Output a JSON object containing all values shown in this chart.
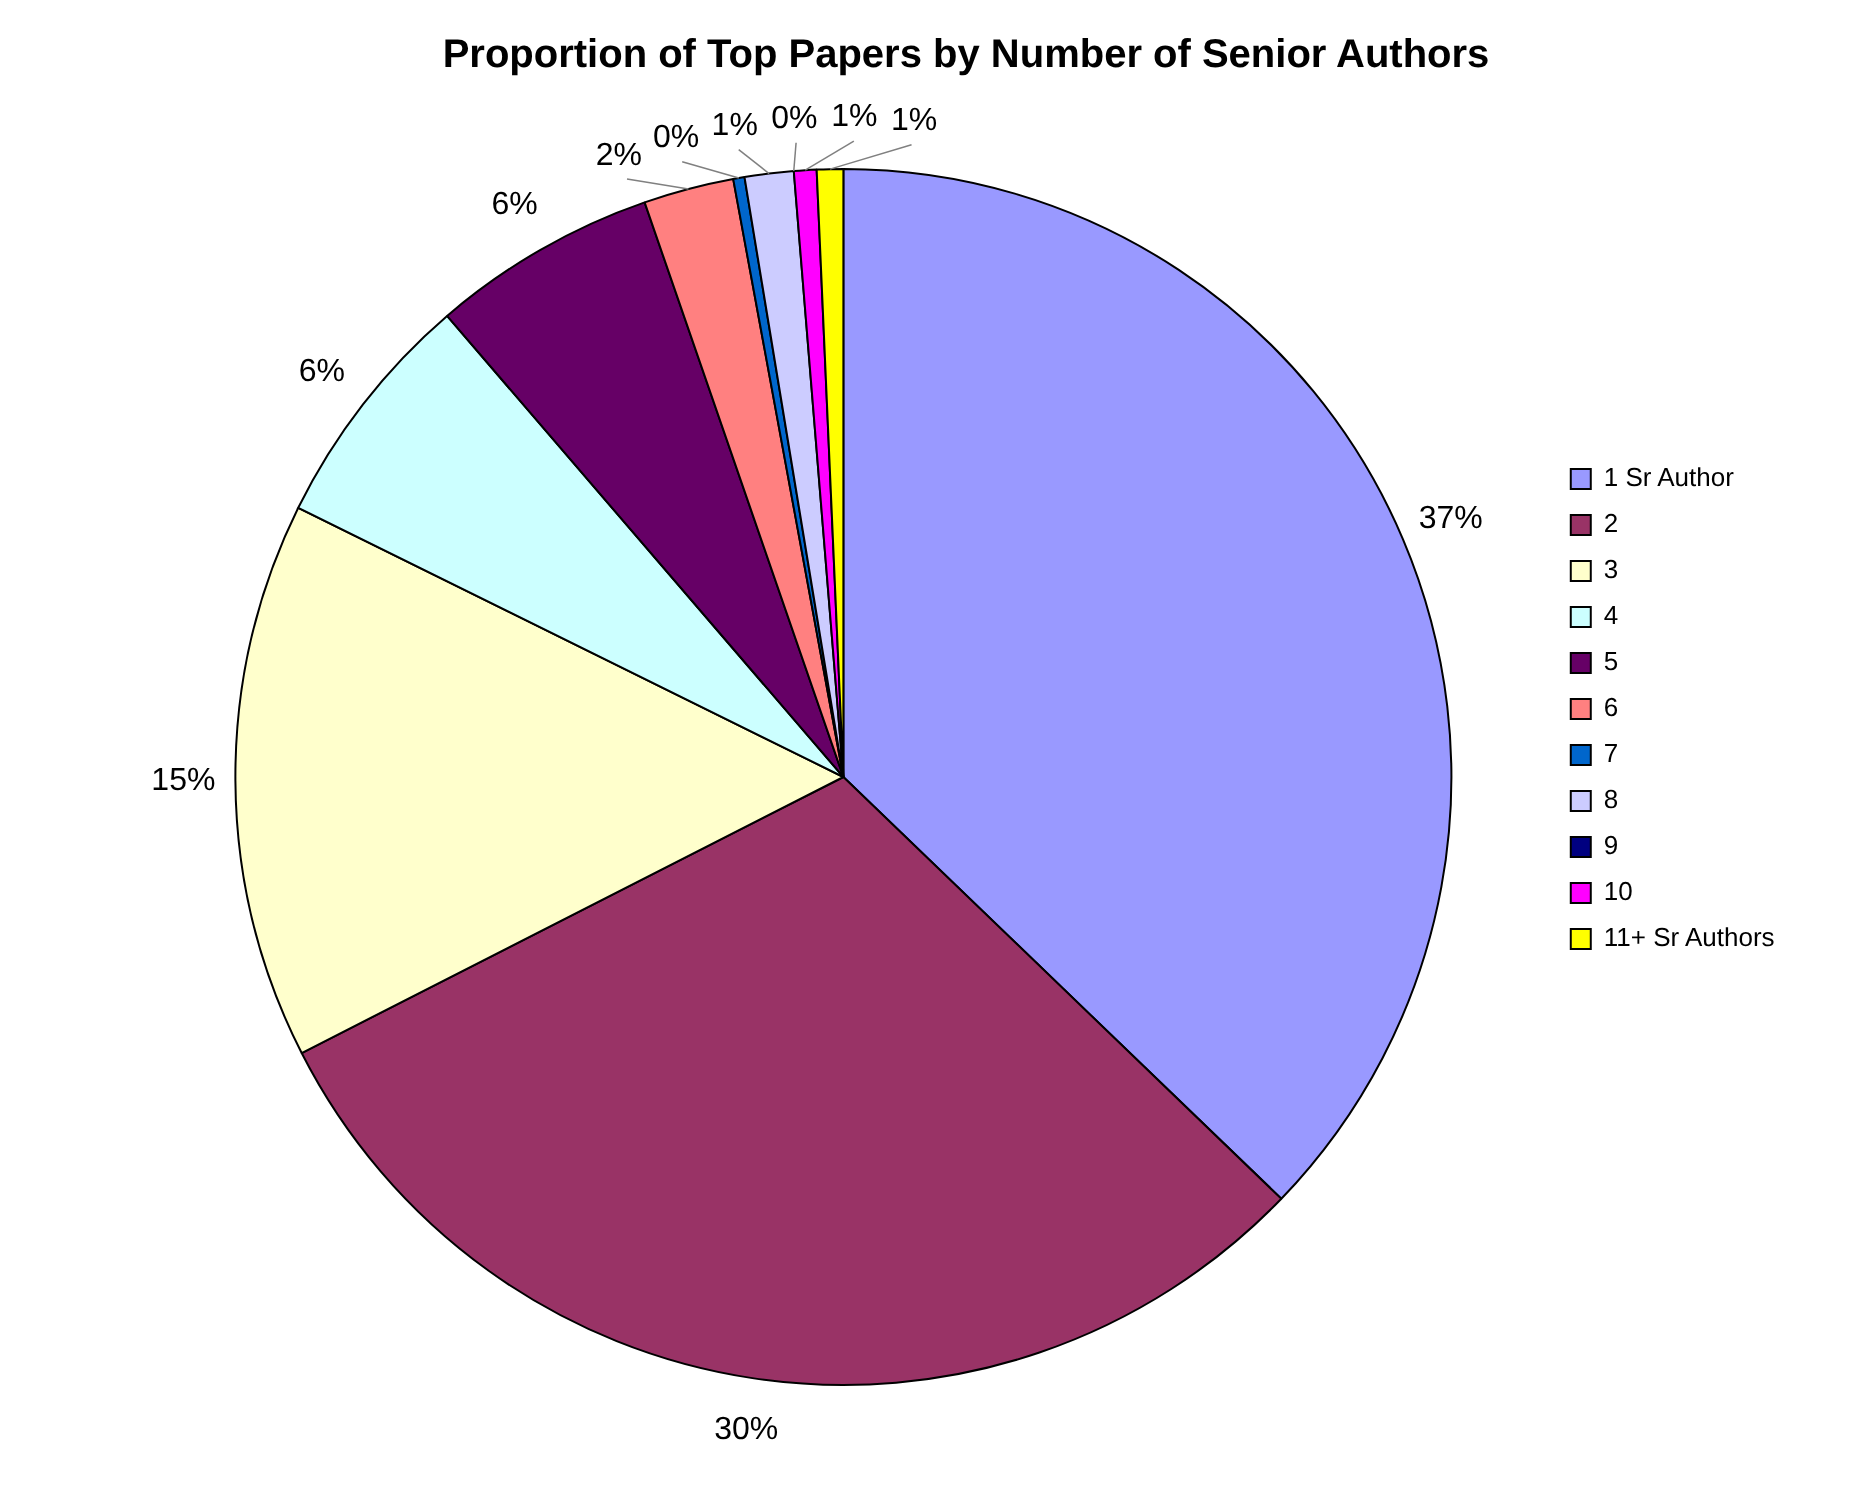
{
  "chart_data": {
    "type": "pie",
    "title": "Proportion of Top Papers by Number of Senior Authors",
    "categories": [
      "1 Sr Author",
      "2",
      "3",
      "4",
      "5",
      "6",
      "7",
      "8",
      "9",
      "10",
      "11+ Sr Authors"
    ],
    "values": [
      37.2,
      30.3,
      14.8,
      6.4,
      6.0,
      2.4,
      0.3,
      1.3,
      0,
      0.6,
      0.7
    ],
    "value_labels": [
      "37%",
      "30%",
      "15%",
      "6%",
      "6%",
      "2%",
      "0%",
      "1%",
      "0%",
      "1%",
      "1%"
    ],
    "colors": [
      "#9999ff",
      "#993366",
      "#ffffcc",
      "#ccffff",
      "#660066",
      "#ff8080",
      "#0066cc",
      "#ccccff",
      "#000080",
      "#ff00ff",
      "#ffff00"
    ],
    "legend": "right"
  }
}
